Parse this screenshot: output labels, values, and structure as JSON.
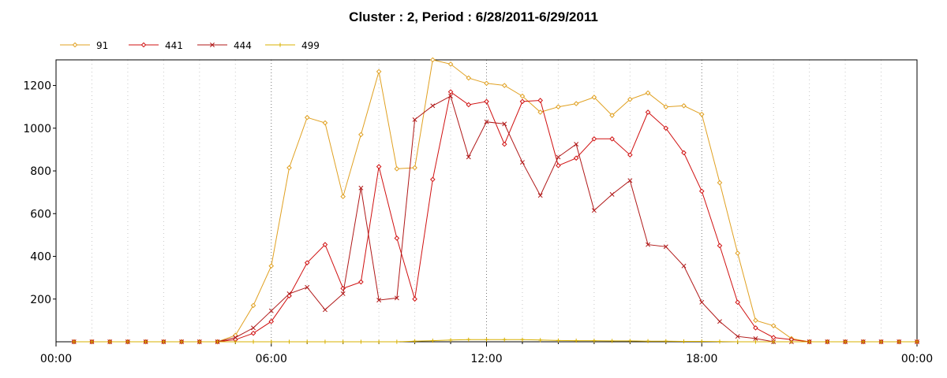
{
  "chart_data": {
    "type": "line",
    "title": "Cluster : 2, Period : 6/28/2011-6/29/2011",
    "xlabel": "",
    "ylabel": "",
    "x_tick_labels": [
      "00:00",
      "06:00",
      "12:00",
      "18:00",
      "00:00"
    ],
    "y_ticks": [
      200,
      400,
      600,
      800,
      1000,
      1200
    ],
    "xlim_hours": [
      0,
      24
    ],
    "ylim": [
      0,
      1320
    ],
    "grid": true,
    "legend_position": "top-left",
    "series": [
      {
        "name": "91",
        "color": "#e0a020",
        "marker": "diamond-open",
        "x_hours": [
          0.5,
          1,
          1.5,
          2,
          2.5,
          3,
          3.5,
          4,
          4.5,
          5,
          5.5,
          6,
          6.5,
          7,
          7.5,
          8,
          8.5,
          9,
          9.5,
          10,
          10.5,
          11,
          11.5,
          12,
          12.5,
          13,
          13.5,
          14,
          14.5,
          15,
          15.5,
          16,
          16.5,
          17,
          17.5,
          18,
          18.5,
          19,
          19.5,
          20,
          20.5,
          21,
          21.5,
          22,
          22.5,
          23,
          23.5,
          24
        ],
        "values": [
          0,
          0,
          0,
          0,
          0,
          0,
          0,
          0,
          0,
          30,
          170,
          355,
          815,
          1050,
          1025,
          680,
          970,
          1265,
          810,
          815,
          1320,
          1300,
          1235,
          1210,
          1200,
          1150,
          1075,
          1100,
          1115,
          1145,
          1060,
          1135,
          1165,
          1100,
          1105,
          1065,
          745,
          415,
          100,
          75,
          15,
          0,
          0,
          0,
          0,
          0,
          0,
          0
        ]
      },
      {
        "name": "441",
        "color": "#d01010",
        "marker": "diamond-open",
        "x_hours": [
          0.5,
          1,
          1.5,
          2,
          2.5,
          3,
          3.5,
          4,
          4.5,
          5,
          5.5,
          6,
          6.5,
          7,
          7.5,
          8,
          8.5,
          9,
          9.5,
          10,
          10.5,
          11,
          11.5,
          12,
          12.5,
          13,
          13.5,
          14,
          14.5,
          15,
          15.5,
          16,
          16.5,
          17,
          17.5,
          18,
          18.5,
          19,
          19.5,
          20,
          20.5,
          21,
          21.5,
          22,
          22.5,
          23,
          23.5,
          24
        ],
        "values": [
          0,
          0,
          0,
          0,
          0,
          0,
          0,
          0,
          0,
          10,
          40,
          95,
          215,
          370,
          455,
          250,
          280,
          820,
          485,
          200,
          760,
          1170,
          1110,
          1125,
          925,
          1125,
          1130,
          825,
          860,
          950,
          950,
          875,
          1075,
          1000,
          885,
          705,
          450,
          185,
          65,
          20,
          10,
          0,
          0,
          0,
          0,
          0,
          0,
          0
        ]
      },
      {
        "name": "444",
        "color": "#b01818",
        "marker": "x",
        "x_hours": [
          0.5,
          1,
          1.5,
          2,
          2.5,
          3,
          3.5,
          4,
          4.5,
          5,
          5.5,
          6,
          6.5,
          7,
          7.5,
          8,
          8.5,
          9,
          9.5,
          10,
          10.5,
          11,
          11.5,
          12,
          12.5,
          13,
          13.5,
          14,
          14.5,
          15,
          15.5,
          16,
          16.5,
          17,
          17.5,
          18,
          18.5,
          19,
          19.5,
          20,
          20.5,
          21,
          21.5,
          22,
          22.5,
          23,
          23.5,
          24
        ],
        "values": [
          0,
          0,
          0,
          0,
          0,
          0,
          0,
          0,
          0,
          20,
          65,
          145,
          225,
          255,
          150,
          225,
          720,
          195,
          205,
          1040,
          1105,
          1150,
          865,
          1030,
          1020,
          840,
          685,
          865,
          925,
          615,
          690,
          755,
          455,
          445,
          355,
          185,
          95,
          25,
          15,
          0,
          0,
          0,
          0,
          0,
          0,
          0,
          0,
          0
        ]
      },
      {
        "name": "499",
        "color": "#d8b000",
        "marker": "plus",
        "x_hours": [
          0.5,
          1,
          1.5,
          2,
          2.5,
          3,
          3.5,
          4,
          4.5,
          5,
          5.5,
          6,
          6.5,
          7,
          7.5,
          8,
          8.5,
          9,
          9.5,
          10,
          10.5,
          11,
          11.5,
          12,
          12.5,
          13,
          13.5,
          14,
          14.5,
          15,
          15.5,
          16,
          16.5,
          17,
          17.5,
          18,
          18.5,
          19,
          19.5,
          20,
          20.5,
          21,
          21.5,
          22,
          22.5,
          23,
          23.5,
          24
        ],
        "values": [
          0,
          0,
          0,
          0,
          0,
          0,
          0,
          0,
          0,
          0,
          0,
          0,
          0,
          0,
          0,
          0,
          0,
          0,
          0,
          3,
          5,
          8,
          10,
          10,
          10,
          10,
          8,
          6,
          5,
          5,
          4,
          4,
          3,
          3,
          2,
          2,
          1,
          0,
          0,
          0,
          0,
          0,
          0,
          0,
          0,
          0,
          0,
          0
        ]
      }
    ]
  }
}
